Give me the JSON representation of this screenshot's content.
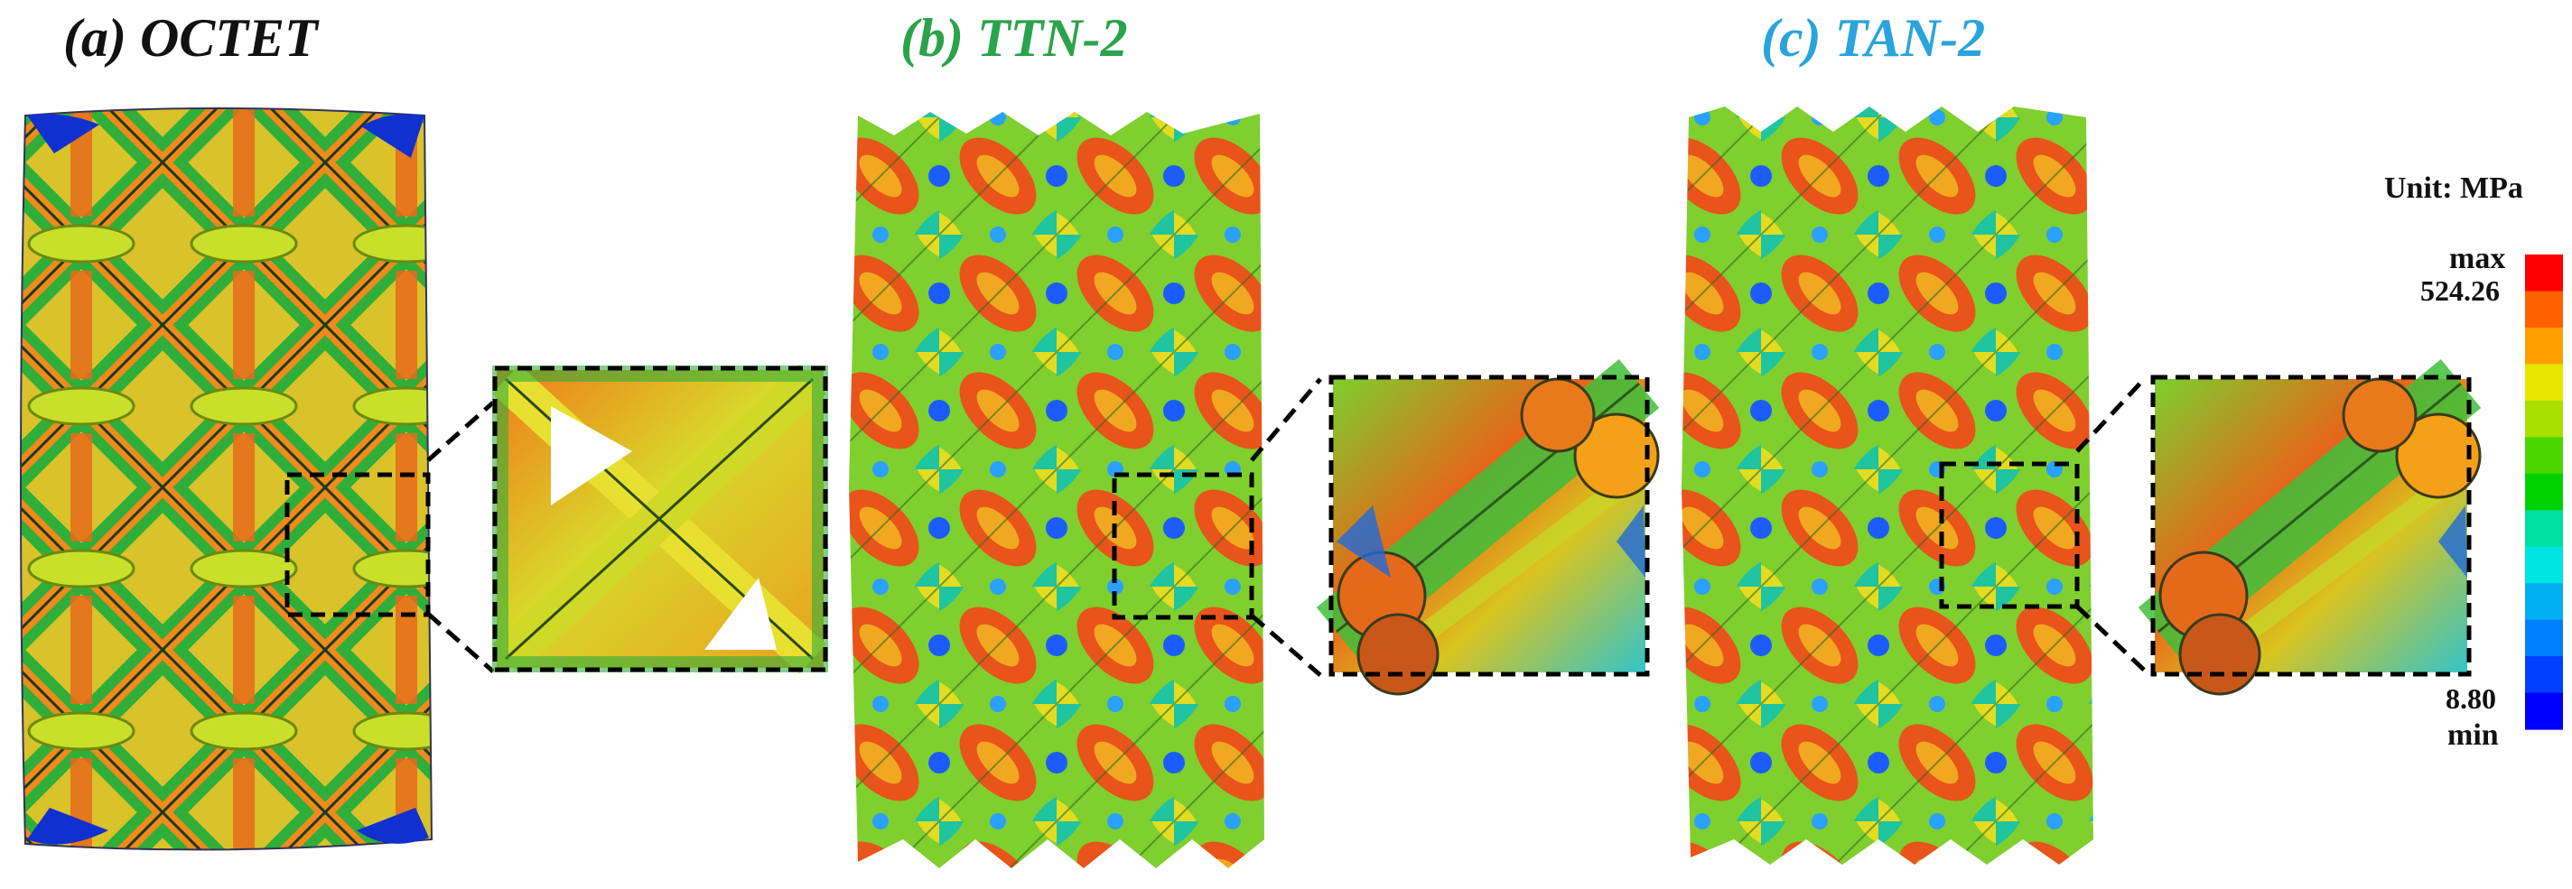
{
  "panels": [
    {
      "label": "(a) OCTET",
      "color": "#111111"
    },
    {
      "label": "(b) TTN-2",
      "color": "#2aa34a"
    },
    {
      "label": "(c) TAN-2",
      "color": "#2aa4dc"
    }
  ],
  "legend": {
    "unit": "Unit: MPa",
    "max_label": "max",
    "max_value": "524.26",
    "min_value": "8.80",
    "min_label": "min",
    "colors": [
      "#ff0000",
      "#ff6000",
      "#ffa000",
      "#e6e600",
      "#a8e000",
      "#4cd600",
      "#00d200",
      "#00e0a0",
      "#00e4e4",
      "#00b0f0",
      "#0080ff",
      "#0040ff",
      "#0000ff"
    ]
  }
}
